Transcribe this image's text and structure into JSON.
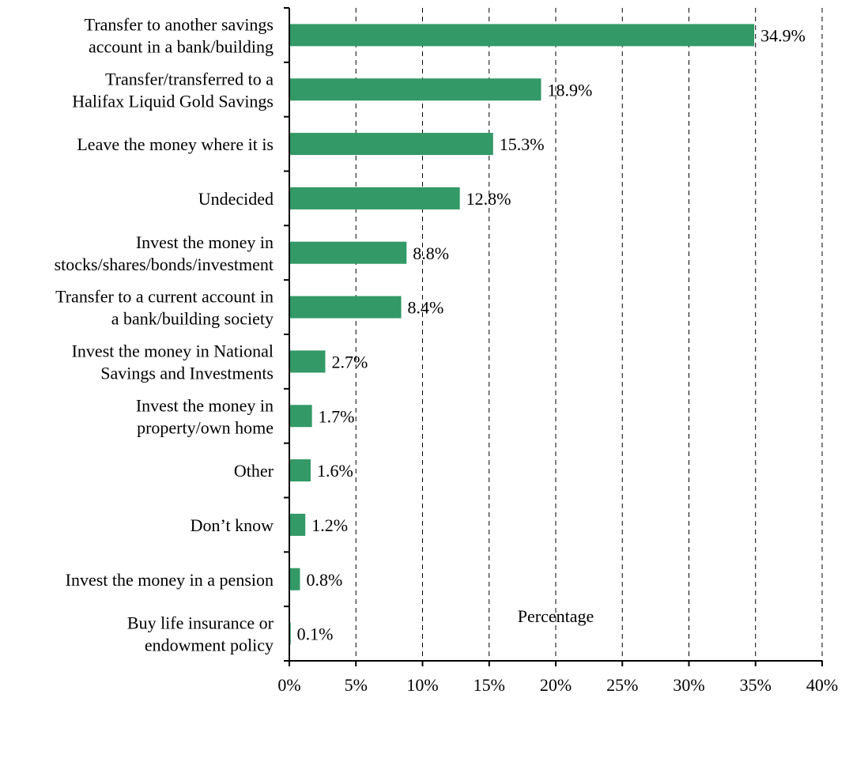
{
  "chart_data": {
    "type": "bar",
    "orientation": "horizontal",
    "title": "",
    "xlabel": "Percentage",
    "ylabel": "",
    "xlim": [
      0,
      40
    ],
    "x_ticks": [
      0,
      5,
      10,
      15,
      20,
      25,
      30,
      35,
      40
    ],
    "x_tick_labels": [
      "0%",
      "5%",
      "10%",
      "15%",
      "20%",
      "25%",
      "30%",
      "35%",
      "40%"
    ],
    "grid": "vertical dashed",
    "legend": "none",
    "bar_color": "#339966",
    "categories": [
      [
        "Transfer to another savings",
        "account in a bank/building"
      ],
      [
        "Transfer/transferred to a",
        "Halifax Liquid Gold Savings"
      ],
      [
        "Leave the money where it is"
      ],
      [
        "Undecided"
      ],
      [
        "Invest the money in",
        "stocks/shares/bonds/investment"
      ],
      [
        "Transfer to a current account in",
        "a bank/building society"
      ],
      [
        "Invest the money in National",
        "Savings and Investments"
      ],
      [
        "Invest the money in",
        "property/own home"
      ],
      [
        "Other"
      ],
      [
        "Don’t know"
      ],
      [
        "Invest the money in a pension"
      ],
      [
        "Buy life insurance or",
        "endowment policy"
      ]
    ],
    "values": [
      34.9,
      18.9,
      15.3,
      12.8,
      8.8,
      8.4,
      2.7,
      1.7,
      1.6,
      1.2,
      0.8,
      0.1
    ],
    "data_labels": [
      "34.9%",
      "18.9%",
      "15.3%",
      "12.8%",
      "8.8%",
      "8.4%",
      "2.7%",
      "1.7%",
      "1.6%",
      "1.2%",
      "0.8%",
      "0.1%"
    ]
  }
}
